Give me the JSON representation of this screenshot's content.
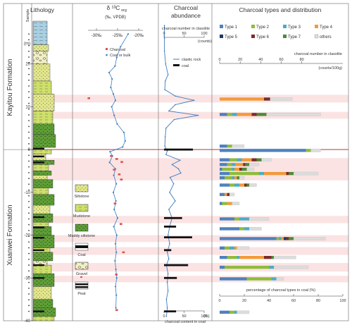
{
  "chart_data": {
    "type": "stratigraphic-panel",
    "columns": {
      "lithology": "Lithology",
      "sample": "Sample",
      "d13c_title": "δ ¹³C",
      "d13c_sub": "org",
      "d13c_units": "(‰, VPDB)",
      "charcoal_title_1": "Charcoal",
      "charcoal_title_2": "abundance",
      "types_title": "Charcoal types and distribution"
    },
    "depth_unit": "(m)",
    "depth_axis": {
      "range": [
        -40,
        30
      ],
      "ticks": [
        20,
        10,
        0,
        -10,
        -20,
        -30,
        -40
      ]
    },
    "formations": [
      {
        "name": "Kayitou Formation"
      },
      {
        "name": "Xuanwei Formation"
      }
    ],
    "boundary_depth": 0,
    "lithology_legend": [
      {
        "label": "Siltstone",
        "kind": "siltstone"
      },
      {
        "label": "Mudstone",
        "kind": "mudstone"
      },
      {
        "label": "Muddy siltstone",
        "kind": "muddy"
      },
      {
        "label": "Coal",
        "kind": "coal"
      },
      {
        "label": "Gravel",
        "kind": "gravel"
      },
      {
        "label": "Peat",
        "kind": "peat"
      }
    ],
    "d13c": {
      "axis_ticks": [
        "-30‰",
        "-25‰",
        "-20‰"
      ],
      "axis_values": [
        -30,
        -25,
        -20
      ],
      "legend": {
        "charcoal": "Charcoal",
        "bulk": "Coal or bulk"
      },
      "bulk": [
        {
          "depth": 27,
          "value": -22.5
        },
        {
          "depth": 24,
          "value": -24.3
        },
        {
          "depth": 21.5,
          "value": -25.2
        },
        {
          "depth": 19.5,
          "value": -25.6
        },
        {
          "depth": 18,
          "value": -27.0
        },
        {
          "depth": 16.5,
          "value": -26.3
        },
        {
          "depth": 14.5,
          "value": -26.6
        },
        {
          "depth": 13,
          "value": -26.0
        },
        {
          "depth": 11.5,
          "value": -25.5
        },
        {
          "depth": 10,
          "value": -26.4
        },
        {
          "depth": 8,
          "value": -25.8
        },
        {
          "depth": 6,
          "value": -25.1
        },
        {
          "depth": 4,
          "value": -23.5
        },
        {
          "depth": 2,
          "value": -23.2
        },
        {
          "depth": 0.6,
          "value": -23.8
        },
        {
          "depth": -0.5,
          "value": -26.8
        },
        {
          "depth": -1.5,
          "value": -26.2
        },
        {
          "depth": -3,
          "value": -26.9
        },
        {
          "depth": -4.5,
          "value": -25.5
        },
        {
          "depth": -6,
          "value": -25.9
        },
        {
          "depth": -8,
          "value": -25.3
        },
        {
          "depth": -10,
          "value": -26.0
        },
        {
          "depth": -12,
          "value": -25.4
        },
        {
          "depth": -14,
          "value": -25.8
        },
        {
          "depth": -16,
          "value": -25.0
        },
        {
          "depth": -18,
          "value": -25.9
        },
        {
          "depth": -20,
          "value": -25.2
        },
        {
          "depth": -22,
          "value": -25.5
        },
        {
          "depth": -24,
          "value": -25.3
        },
        {
          "depth": -26,
          "value": -25.6
        },
        {
          "depth": -28,
          "value": -25.4
        },
        {
          "depth": -30,
          "value": -25.2
        },
        {
          "depth": -32,
          "value": -25.5
        },
        {
          "depth": -34,
          "value": -25.3
        },
        {
          "depth": -37,
          "value": -25.4
        }
      ],
      "charcoal": [
        {
          "depth": 12,
          "value": -31.8
        },
        {
          "depth": -1.5,
          "value": -26.5
        },
        {
          "depth": -2.2,
          "value": -25.2
        },
        {
          "depth": -2.9,
          "value": -24.0
        },
        {
          "depth": -4.7,
          "value": -25.8
        },
        {
          "depth": -5.8,
          "value": -24.6
        },
        {
          "depth": -7.0,
          "value": -24.1
        },
        {
          "depth": -12.6,
          "value": -25.6
        },
        {
          "depth": -17.4,
          "value": -24.2
        },
        {
          "depth": -24.0,
          "value": -23.6
        },
        {
          "depth": -29.2,
          "value": -25.3
        },
        {
          "depth": -37.5,
          "value": -25.2
        }
      ]
    },
    "abundance": {
      "top_label": "charcoal number in clasolite",
      "top_ticks": [
        "0",
        "50",
        "100"
      ],
      "top_unit": "(counts)",
      "bottom_ticks": [
        "0",
        "50",
        "100"
      ],
      "bottom_unit": "(%)",
      "bottom_label": "charcoal content in coal",
      "legend": {
        "clastic": "clastic rock",
        "coal": "coal"
      },
      "clastic": [
        {
          "depth": 29,
          "value": 1
        },
        {
          "depth": 26,
          "value": 1
        },
        {
          "depth": 23,
          "value": 1
        },
        {
          "depth": 20,
          "value": 4
        },
        {
          "depth": 17.5,
          "value": 10
        },
        {
          "depth": 16,
          "value": 3
        },
        {
          "depth": 14,
          "value": 2
        },
        {
          "depth": 12.5,
          "value": 28
        },
        {
          "depth": 11.5,
          "value": 75
        },
        {
          "depth": 10.5,
          "value": 28
        },
        {
          "depth": 9,
          "value": 12
        },
        {
          "depth": 8,
          "value": 85
        },
        {
          "depth": 7,
          "value": 25
        },
        {
          "depth": 5,
          "value": 5
        },
        {
          "depth": 3,
          "value": 3
        },
        {
          "depth": 0.8,
          "value": 2
        },
        {
          "depth": -0.3,
          "value": 8
        },
        {
          "depth": -1.2,
          "value": 5
        },
        {
          "depth": -2.5,
          "value": 40
        },
        {
          "depth": -3.5,
          "value": 20
        },
        {
          "depth": -4.5,
          "value": 36
        },
        {
          "depth": -5.5,
          "value": 42
        },
        {
          "depth": -6.5,
          "value": 15
        },
        {
          "depth": -8,
          "value": 24
        },
        {
          "depth": -10,
          "value": 14
        },
        {
          "depth": -12,
          "value": 28
        },
        {
          "depth": -14,
          "value": 12
        },
        {
          "depth": -16,
          "value": 20
        },
        {
          "depth": -18,
          "value": 14
        },
        {
          "depth": -20,
          "value": 10
        },
        {
          "depth": -22,
          "value": 14
        },
        {
          "depth": -24,
          "value": 8
        },
        {
          "depth": -25.5,
          "value": 12
        },
        {
          "depth": -27,
          "value": 6
        },
        {
          "depth": -29,
          "value": 10
        },
        {
          "depth": -31,
          "value": 8
        },
        {
          "depth": -33,
          "value": 10
        },
        {
          "depth": -35,
          "value": 6
        },
        {
          "depth": -37,
          "value": 8
        },
        {
          "depth": -39,
          "value": 6
        }
      ],
      "coal": [
        {
          "depth": 0,
          "value": 72
        },
        {
          "depth": -16,
          "value": 45
        },
        {
          "depth": -18,
          "value": 30
        },
        {
          "depth": -20.5,
          "value": 70
        },
        {
          "depth": -23.5,
          "value": 18
        },
        {
          "depth": -27,
          "value": 60
        },
        {
          "depth": -30,
          "value": 32
        },
        {
          "depth": -37.8,
          "value": 30
        }
      ]
    },
    "types": {
      "legend": [
        {
          "name": "Type 1",
          "color": "#4f81bd"
        },
        {
          "name": "Type 2",
          "color": "#8fbc3c"
        },
        {
          "name": "Type 3",
          "color": "#4bacc6"
        },
        {
          "name": "Type 4",
          "color": "#f39a3b"
        },
        {
          "name": "Type 5",
          "color": "#1f3864"
        },
        {
          "name": "Type 6",
          "color": "#7b2c2c"
        },
        {
          "name": "Type 7",
          "color": "#4e8a35"
        },
        {
          "name": "others",
          "color": "#dcdcdc"
        }
      ],
      "top_label": "charcoal number in clasolite",
      "top_ticks": [
        "0",
        "20",
        "40",
        "60",
        "80"
      ],
      "top_unit": "(counts/100g)",
      "bottom_label": "percentage of charcoal types in coal (%)",
      "bottom_ticks": [
        "0",
        "20",
        "40",
        "60",
        "80",
        "100"
      ],
      "bars": [
        {
          "depth": 11.8,
          "values": [
            0,
            0,
            0,
            36,
            0,
            5,
            0,
            18
          ]
        },
        {
          "depth": 8.2,
          "values": [
            6,
            4,
            4,
            12,
            0,
            4,
            8,
            44
          ]
        },
        {
          "depth": 0.8,
          "values": [
            6,
            4,
            0,
            0,
            0,
            0,
            0,
            10
          ]
        },
        {
          "depth": -0.2,
          "values": [
            70,
            4,
            0,
            0,
            0,
            0,
            0,
            8
          ]
        },
        {
          "depth": -2.4,
          "values": [
            8,
            6,
            4,
            8,
            0,
            4,
            4,
            8
          ]
        },
        {
          "depth": -3.5,
          "values": [
            6,
            4,
            3,
            6,
            0,
            2,
            3,
            8
          ]
        },
        {
          "depth": -4.6,
          "values": [
            2,
            8,
            2,
            4,
            0,
            2,
            4,
            6
          ]
        },
        {
          "depth": -5.6,
          "values": [
            8,
            24,
            4,
            18,
            0,
            2,
            4,
            20
          ]
        },
        {
          "depth": -6.6,
          "values": [
            4,
            6,
            2,
            2,
            0,
            0,
            2,
            4
          ]
        },
        {
          "depth": -8.3,
          "values": [
            8,
            4,
            4,
            4,
            0,
            2,
            2,
            6
          ]
        },
        {
          "depth": -10.5,
          "values": [
            4,
            0,
            0,
            2,
            0,
            2,
            0,
            4
          ]
        },
        {
          "depth": -12.6,
          "values": [
            2,
            4,
            0,
            4,
            0,
            0,
            0,
            6
          ]
        },
        {
          "depth": -16.2,
          "values": [
            12,
            4,
            8,
            0,
            0,
            0,
            0,
            16
          ]
        },
        {
          "depth": -18.5,
          "values": [
            16,
            4,
            4,
            0,
            0,
            0,
            0,
            10
          ]
        },
        {
          "depth": -20.8,
          "values": [
            46,
            2,
            2,
            2,
            2,
            2,
            4,
            26
          ]
        },
        {
          "depth": -23.0,
          "values": [
            4,
            4,
            4,
            2,
            0,
            0,
            0,
            10
          ]
        },
        {
          "depth": -25.2,
          "values": [
            6,
            8,
            2,
            20,
            0,
            6,
            2,
            18
          ]
        },
        {
          "depth": -27.5,
          "values": [
            4,
            36,
            4,
            0,
            0,
            0,
            0,
            28
          ]
        },
        {
          "depth": -30.2,
          "values": [
            22,
            20,
            4,
            0,
            0,
            0,
            0,
            6
          ]
        },
        {
          "depth": -38.0,
          "values": [
            8,
            4,
            2,
            0,
            0,
            0,
            0,
            10
          ]
        }
      ]
    }
  }
}
